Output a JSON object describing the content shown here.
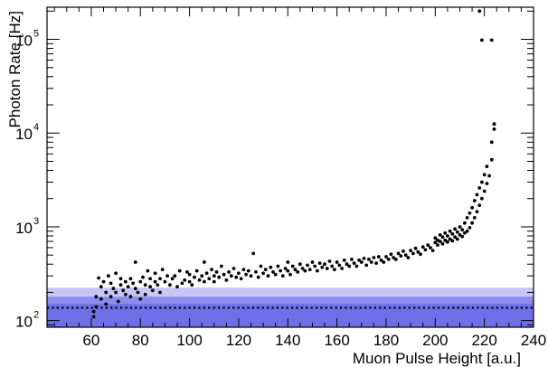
{
  "chart_data": {
    "type": "scatter",
    "title": "",
    "xlabel": "Muon Pulse Height [a.u.]",
    "ylabel": "Photon Rate [Hz]",
    "xlim": [
      42,
      240
    ],
    "ylim": [
      85,
      220000
    ],
    "yscale": "log",
    "xticks": [
      60,
      80,
      100,
      120,
      140,
      160,
      180,
      200,
      220,
      240
    ],
    "xtick_labels": [
      "60",
      "80",
      "100",
      "120",
      "140",
      "160",
      "180",
      "200",
      "220",
      "240"
    ],
    "yticks": [
      100,
      1000,
      10000,
      100000
    ],
    "ytick_labels": [
      "10",
      "10",
      "10",
      "10"
    ],
    "ytick_exponents": [
      "2",
      "3",
      "4",
      "5"
    ],
    "grid": false,
    "bands": [
      {
        "y0": 85,
        "y1": 225,
        "color": "#c6c6f6"
      },
      {
        "y0": 85,
        "y1": 180,
        "color": "#8c8cec"
      },
      {
        "y0": 85,
        "y1": 150,
        "color": "#6f6fe8"
      }
    ],
    "hline": {
      "y": 137,
      "style": "dotted",
      "color": "#000000"
    },
    "series": [
      {
        "marker_color": "#000000",
        "points": [
          [
            61,
            110
          ],
          [
            61,
            125
          ],
          [
            62,
            140
          ],
          [
            62,
            180
          ],
          [
            63,
            285
          ],
          [
            64,
            170
          ],
          [
            64,
            230
          ],
          [
            65,
            260
          ],
          [
            66,
            200
          ],
          [
            66,
            150
          ],
          [
            67,
            300
          ],
          [
            68,
            250
          ],
          [
            68,
            180
          ],
          [
            69,
            220
          ],
          [
            70,
            320
          ],
          [
            70,
            200
          ],
          [
            71,
            160
          ],
          [
            72,
            240
          ],
          [
            72,
            280
          ],
          [
            73,
            210
          ],
          [
            74,
            190
          ],
          [
            74,
            260
          ],
          [
            75,
            230
          ],
          [
            76,
            180
          ],
          [
            76,
            280
          ],
          [
            77,
            250
          ],
          [
            78,
            420
          ],
          [
            78,
            220
          ],
          [
            79,
            200
          ],
          [
            80,
            260
          ],
          [
            80,
            170
          ],
          [
            81,
            290
          ],
          [
            82,
            240
          ],
          [
            82,
            190
          ],
          [
            83,
            340
          ],
          [
            84,
            230
          ],
          [
            84,
            280
          ],
          [
            85,
            210
          ],
          [
            86,
            260
          ],
          [
            86,
            320
          ],
          [
            87,
            240
          ],
          [
            88,
            280
          ],
          [
            88,
            200
          ],
          [
            89,
            350
          ],
          [
            90,
            260
          ],
          [
            91,
            300
          ],
          [
            92,
            240
          ],
          [
            93,
            280
          ],
          [
            94,
            300
          ],
          [
            95,
            230
          ],
          [
            96,
            340
          ],
          [
            97,
            250
          ],
          [
            98,
            270
          ],
          [
            99,
            330
          ],
          [
            100,
            260
          ],
          [
            100,
            310
          ],
          [
            101,
            240
          ],
          [
            102,
            290
          ],
          [
            103,
            340
          ],
          [
            104,
            270
          ],
          [
            105,
            300
          ],
          [
            106,
            260
          ],
          [
            106,
            420
          ],
          [
            107,
            320
          ],
          [
            108,
            280
          ],
          [
            109,
            350
          ],
          [
            110,
            300
          ],
          [
            110,
            260
          ],
          [
            111,
            330
          ],
          [
            112,
            290
          ],
          [
            113,
            380
          ],
          [
            114,
            310
          ],
          [
            115,
            270
          ],
          [
            116,
            330
          ],
          [
            117,
            300
          ],
          [
            118,
            360
          ],
          [
            119,
            290
          ],
          [
            120,
            320
          ],
          [
            121,
            280
          ],
          [
            122,
            350
          ],
          [
            123,
            310
          ],
          [
            124,
            340
          ],
          [
            125,
            300
          ],
          [
            126,
            520
          ],
          [
            127,
            330
          ],
          [
            128,
            290
          ],
          [
            129,
            380
          ],
          [
            130,
            320
          ],
          [
            131,
            350
          ],
          [
            132,
            300
          ],
          [
            133,
            370
          ],
          [
            134,
            330
          ],
          [
            135,
            310
          ],
          [
            136,
            380
          ],
          [
            137,
            340
          ],
          [
            138,
            300
          ],
          [
            139,
            360
          ],
          [
            140,
            340
          ],
          [
            140,
            420
          ],
          [
            141,
            310
          ],
          [
            142,
            380
          ],
          [
            143,
            350
          ],
          [
            144,
            330
          ],
          [
            145,
            400
          ],
          [
            146,
            360
          ],
          [
            147,
            340
          ],
          [
            148,
            390
          ],
          [
            149,
            350
          ],
          [
            150,
            420
          ],
          [
            151,
            380
          ],
          [
            152,
            340
          ],
          [
            153,
            410
          ],
          [
            154,
            370
          ],
          [
            155,
            400
          ],
          [
            156,
            360
          ],
          [
            157,
            430
          ],
          [
            158,
            380
          ],
          [
            159,
            350
          ],
          [
            160,
            420
          ],
          [
            161,
            390
          ],
          [
            162,
            360
          ],
          [
            163,
            440
          ],
          [
            164,
            400
          ],
          [
            165,
            380
          ],
          [
            166,
            450
          ],
          [
            167,
            410
          ],
          [
            168,
            380
          ],
          [
            169,
            440
          ],
          [
            170,
            420
          ],
          [
            171,
            460
          ],
          [
            172,
            390
          ],
          [
            173,
            450
          ],
          [
            174,
            420
          ],
          [
            175,
            470
          ],
          [
            176,
            410
          ],
          [
            177,
            480
          ],
          [
            178,
            440
          ],
          [
            179,
            420
          ],
          [
            180,
            480
          ],
          [
            181,
            450
          ],
          [
            182,
            510
          ],
          [
            183,
            470
          ],
          [
            184,
            450
          ],
          [
            185,
            520
          ],
          [
            186,
            490
          ],
          [
            187,
            550
          ],
          [
            188,
            500
          ],
          [
            189,
            470
          ],
          [
            190,
            560
          ],
          [
            191,
            520
          ],
          [
            192,
            590
          ],
          [
            193,
            540
          ],
          [
            194,
            510
          ],
          [
            195,
            610
          ],
          [
            196,
            570
          ],
          [
            197,
            640
          ],
          [
            198,
            600
          ],
          [
            199,
            560
          ],
          [
            200,
            680
          ],
          [
            200,
            760
          ],
          [
            201,
            640
          ],
          [
            201,
            720
          ],
          [
            202,
            700
          ],
          [
            202,
            820
          ],
          [
            203,
            660
          ],
          [
            203,
            780
          ],
          [
            204,
            720
          ],
          [
            204,
            860
          ],
          [
            205,
            690
          ],
          [
            205,
            800
          ],
          [
            206,
            740
          ],
          [
            206,
            900
          ],
          [
            207,
            710
          ],
          [
            207,
            840
          ],
          [
            208,
            780
          ],
          [
            208,
            950
          ],
          [
            209,
            740
          ],
          [
            209,
            880
          ],
          [
            210,
            820
          ],
          [
            210,
            1000
          ],
          [
            211,
            790
          ],
          [
            211,
            930
          ],
          [
            212,
            860
          ],
          [
            212,
            1100
          ],
          [
            213,
            900
          ],
          [
            213,
            1250
          ],
          [
            214,
            980
          ],
          [
            214,
            1400
          ],
          [
            215,
            1100
          ],
          [
            215,
            1600
          ],
          [
            216,
            1250
          ],
          [
            216,
            1900
          ],
          [
            217,
            1450
          ],
          [
            217,
            2200
          ],
          [
            218,
            1700
          ],
          [
            218,
            2600
          ],
          [
            219,
            2000
          ],
          [
            219,
            3000
          ],
          [
            220,
            2400
          ],
          [
            220,
            3600
          ],
          [
            221,
            2900
          ],
          [
            221,
            4400
          ],
          [
            222,
            3500
          ],
          [
            223,
            5200
          ],
          [
            223,
            8000
          ],
          [
            224,
            11000
          ],
          [
            224,
            12500
          ],
          [
            218,
            200000
          ],
          [
            219,
            98000
          ],
          [
            223,
            98000
          ]
        ]
      }
    ]
  }
}
